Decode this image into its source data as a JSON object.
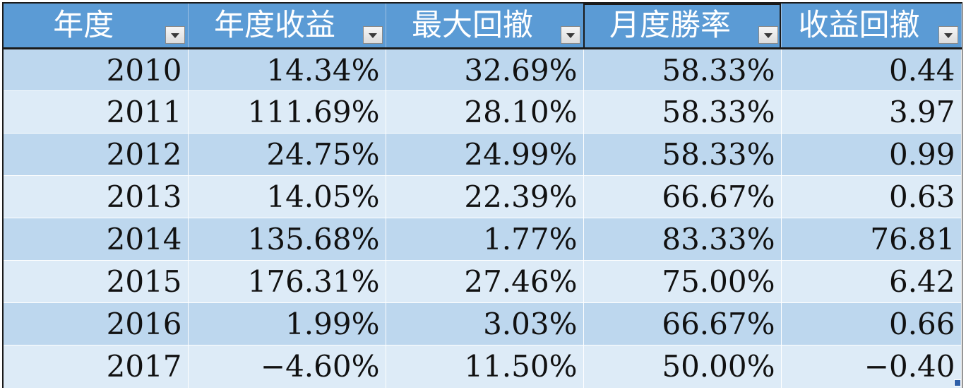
{
  "table": {
    "headers": [
      "年度",
      "年度收益",
      "最大回撤",
      "月度勝率",
      "收益回撤"
    ],
    "rows": [
      [
        "2010",
        "14.34%",
        "32.69%",
        "58.33%",
        "0.44"
      ],
      [
        "2011",
        "111.69%",
        "28.10%",
        "58.33%",
        "3.97"
      ],
      [
        "2012",
        "24.75%",
        "24.99%",
        "58.33%",
        "0.99"
      ],
      [
        "2013",
        "14.05%",
        "22.39%",
        "66.67%",
        "0.63"
      ],
      [
        "2014",
        "135.68%",
        "1.77%",
        "83.33%",
        "76.81"
      ],
      [
        "2015",
        "176.31%",
        "27.46%",
        "75.00%",
        "6.42"
      ],
      [
        "2016",
        "1.99%",
        "3.03%",
        "66.67%",
        "0.66"
      ],
      [
        "2017",
        "−4.60%",
        "11.50%",
        "50.00%",
        "−0.40"
      ]
    ]
  },
  "colors": {
    "header_bg": "#5b9bd5",
    "row_band_dark": "#bdd7ee",
    "row_band_light": "#ddebf7",
    "border": "#1a1a1a"
  },
  "icons": {
    "filter": "filter-dropdown-icon",
    "fill_handle": "fill-handle-icon"
  }
}
